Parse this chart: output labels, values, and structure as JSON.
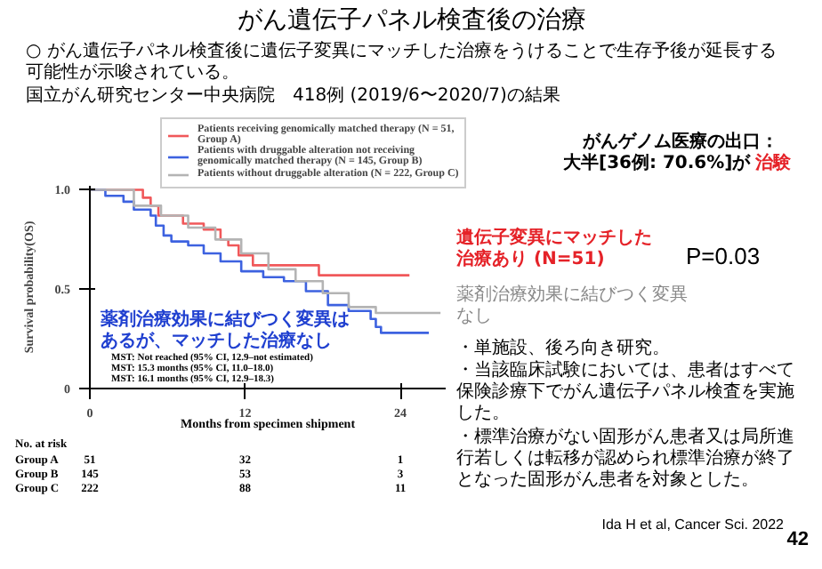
{
  "chart_data": {
    "type": "step",
    "title": "がん遺伝子パネル検査後の治療",
    "xlabel": "Months from specimen shipment",
    "ylabel": "Survival probability(OS)",
    "xlim": [
      0,
      27.5
    ],
    "xticks": [
      0,
      12,
      24
    ],
    "ylim": [
      0,
      1.02
    ],
    "yticks": [
      {
        "value": 0,
        "label": "0"
      },
      {
        "value": 0.5,
        "label": "0.5"
      },
      {
        "value": 1,
        "label": "1.0"
      }
    ],
    "grid": false,
    "legend": "top",
    "series": [
      {
        "name": "Patients receiving genomically matched therapy (N = 51, Group A)",
        "color": "#f0585a",
        "x": [
          0,
          4.1,
          4.7,
          5.3,
          7.2,
          8.8,
          10.1,
          10.7,
          11.5,
          12.6,
          13.4,
          17.7,
          24.7
        ],
        "values": [
          1.0,
          0.96,
          0.92,
          0.87,
          0.83,
          0.8,
          0.75,
          0.72,
          0.67,
          0.62,
          0.62,
          0.57,
          0.57
        ]
      },
      {
        "name": "Patients with druggable alteration not receiving genomically matched therapy (N = 145, Group B)",
        "color": "#3d62e0",
        "x": [
          0,
          1.2,
          2.6,
          3.4,
          4.7,
          5.1,
          5.7,
          6.3,
          7.6,
          8.8,
          10.1,
          11.7,
          13.4,
          15.0,
          16.7,
          18.4,
          20.0,
          21.7,
          22.1,
          22.5,
          26.2
        ],
        "values": [
          1.0,
          0.97,
          0.94,
          0.9,
          0.87,
          0.82,
          0.77,
          0.74,
          0.72,
          0.68,
          0.64,
          0.59,
          0.56,
          0.54,
          0.49,
          0.42,
          0.39,
          0.35,
          0.31,
          0.28,
          0.28
        ]
      },
      {
        "name": "Patients without druggable alteration (N = 222, Group C)",
        "color": "#b4b4b4",
        "x": [
          0,
          3.4,
          5.5,
          7.6,
          9.7,
          11.7,
          13.8,
          15.9,
          18.0,
          20.0,
          22.1,
          27.1
        ],
        "values": [
          1.0,
          0.92,
          0.87,
          0.81,
          0.75,
          0.68,
          0.6,
          0.54,
          0.48,
          0.41,
          0.38,
          0.38
        ]
      }
    ],
    "annotations": [
      "○ がん遺伝子パネル検査後に遺伝子変異にマッチした治療をうけることで生存予後が延長する可能性が示唆されている。",
      "国立がん研究センター中央病院　418例 (2019/6〜2020/7)の結果",
      "遺伝子変異にマッチした治療あり (N=51)",
      "薬剤治療効果に結びつく変異はあるが、マッチした治療なし",
      "薬剤治療効果に結びつく変異なし",
      "MST: Not reached (95% CI, 12.9–not estimated)",
      "MST: 15.3 months (95% CI, 11.0–18.0)",
      "MST: 16.1 months (95% CI, 12.9–18.3)",
      "No. at risk",
      "Group A",
      "Group B",
      "Group C",
      "51",
      "32",
      "1",
      "145",
      "53",
      "3",
      "222",
      "88",
      "11",
      "がんゲノム医療の出口：",
      "大半[36例: 70.6%]が",
      "治験",
      "P=0.03",
      "・単施設、後ろ向き研究。",
      "・当該臨床試験においては、患者はすべて保険診療下でがん遺伝子パネル検査を実施した。",
      "・標準治療がない固形がん患者又は局所進行若しくは転移が認められ標準治療が終了となった固形がん患者を対象とした。",
      "Ida H et al, Cancer Sci. 2022",
      "42"
    ]
  }
}
